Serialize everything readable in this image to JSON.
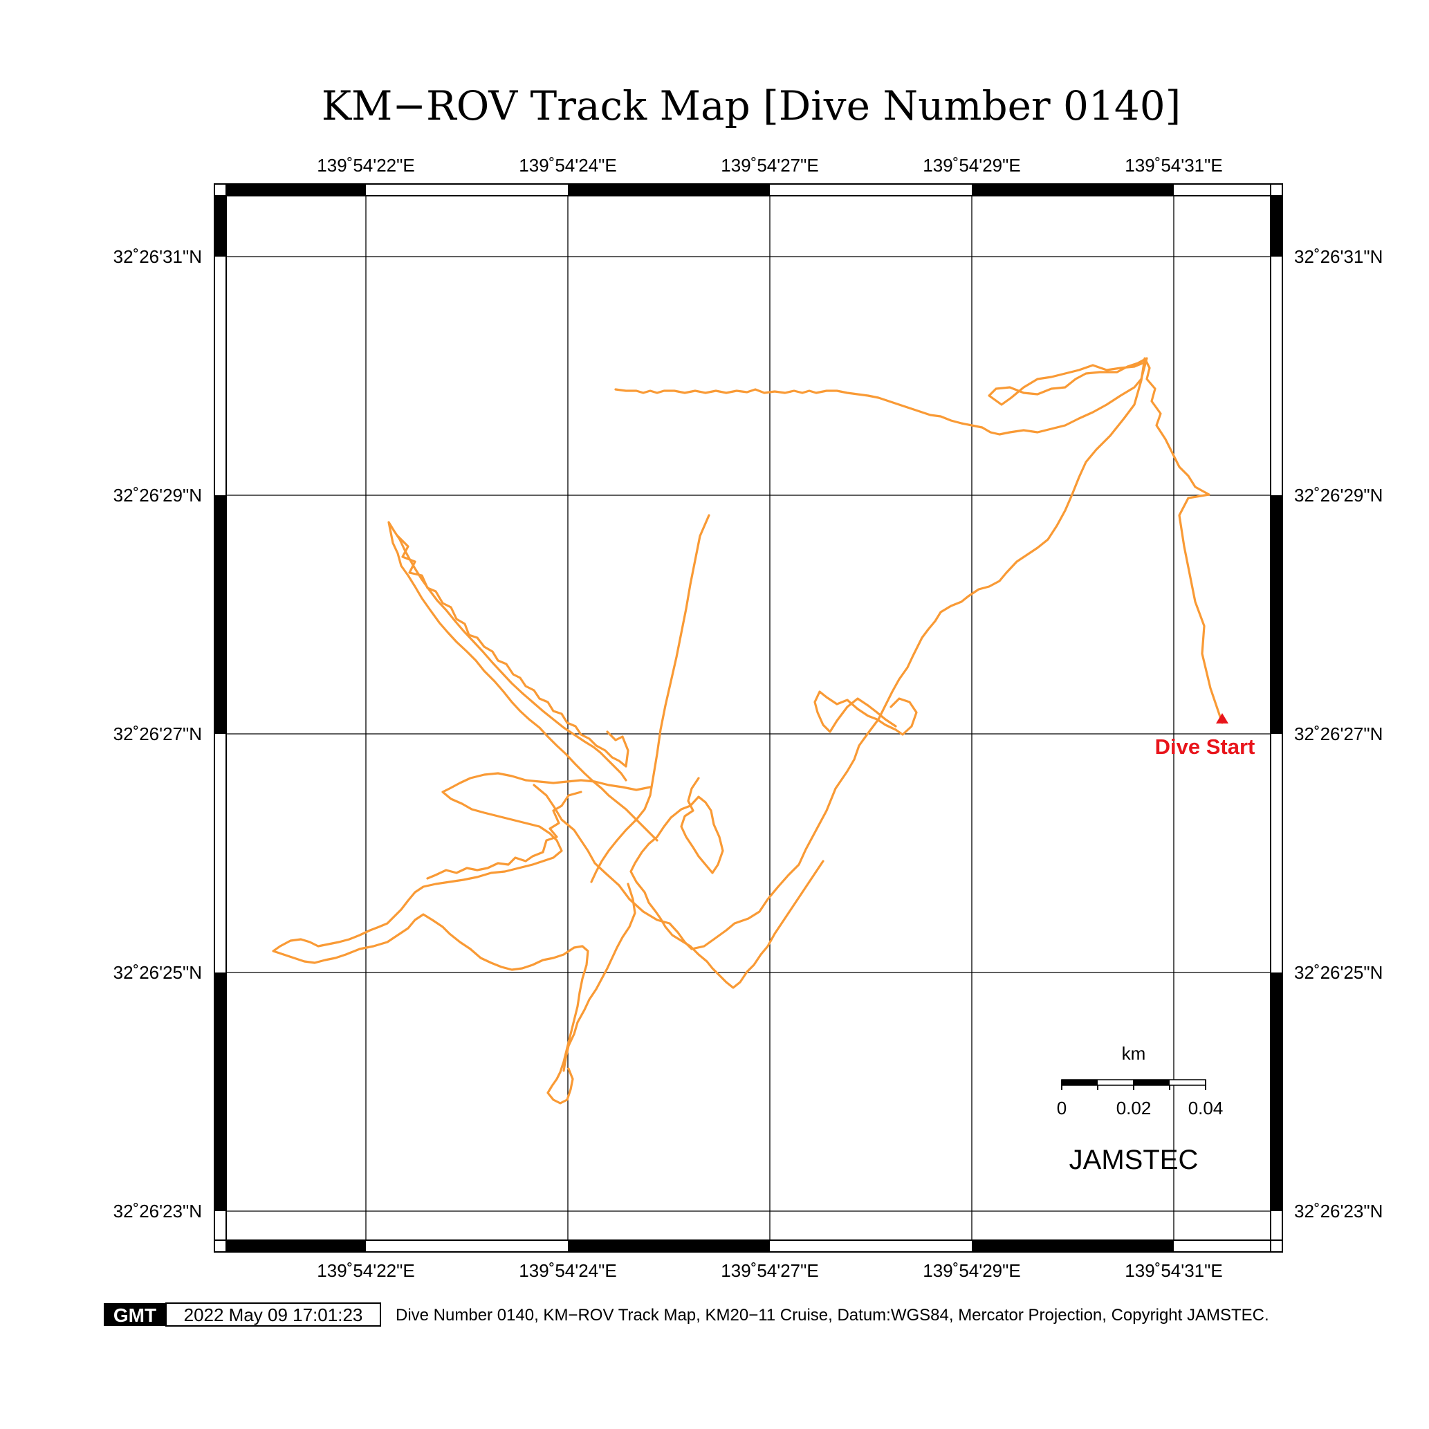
{
  "title": "KM−ROV Track Map [Dive Number 0140]",
  "lon_ticks": [
    "139˚54'22\"E",
    "139˚54'24\"E",
    "139˚54'27\"E",
    "139˚54'29\"E",
    "139˚54'31\"E"
  ],
  "lat_ticks": [
    "32˚26'31\"N",
    "32˚26'29\"N",
    "32˚26'27\"N",
    "32˚26'25\"N",
    "32˚26'23\"N"
  ],
  "scale_bar": {
    "unit": "km",
    "labels": [
      "0",
      "0.02",
      "0.04"
    ]
  },
  "brand": "JAMSTEC",
  "dive_start_label": "Dive Start",
  "colors": {
    "track": "#f99a35",
    "dive_start": "#e8141b"
  },
  "footer": {
    "logo_text": "GMT",
    "timestamp": "2022 May 09 17:01:23",
    "caption": "Dive Number 0140, KM−ROV Track Map, KM20−11 Cruise, Datum:WGS84, Mercator Projection, Copyright JAMSTEC."
  }
}
